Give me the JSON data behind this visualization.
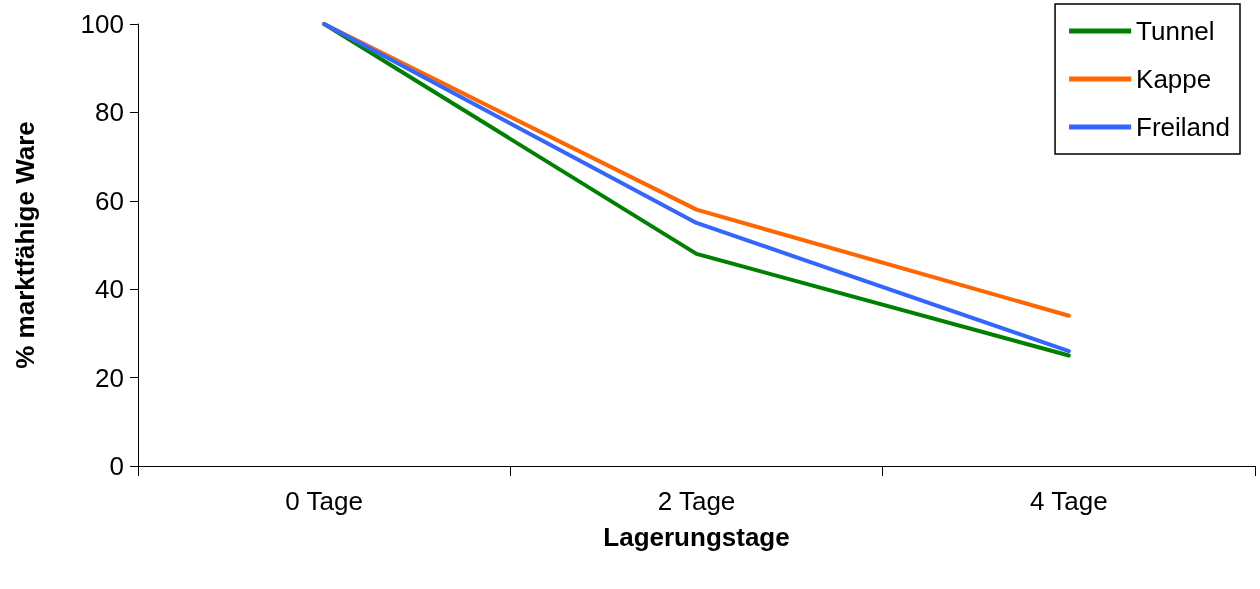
{
  "chart_data": {
    "type": "line",
    "xlabel": "Lagerungstage",
    "ylabel": "% marktfähige Ware",
    "categories": [
      "0 Tage",
      "2 Tage",
      "4 Tage"
    ],
    "series": [
      {
        "name": "Tunnel",
        "color": "#008000",
        "values": [
          100,
          48,
          25
        ]
      },
      {
        "name": "Kappe",
        "color": "#ff6600",
        "values": [
          100,
          58,
          34
        ]
      },
      {
        "name": "Freiland",
        "color": "#3366ff",
        "values": [
          100,
          55,
          26
        ]
      }
    ],
    "ylim": [
      0,
      100
    ],
    "yticks": [
      0,
      20,
      40,
      60,
      80,
      100
    ],
    "grid": false,
    "legend": "top right",
    "marker": "none",
    "line_style": "solid"
  }
}
